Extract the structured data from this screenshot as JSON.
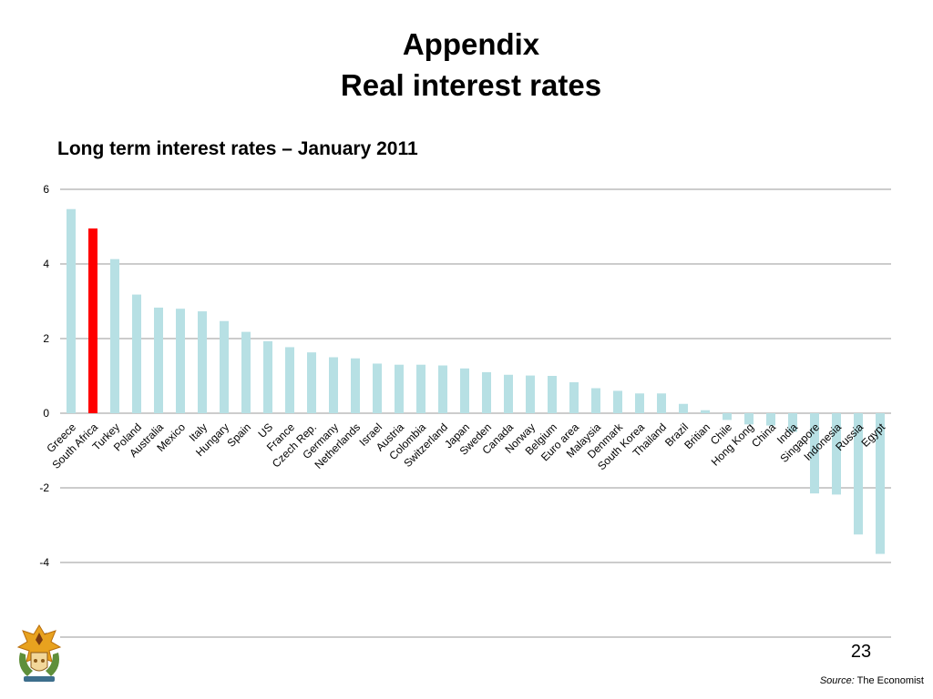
{
  "slide": {
    "title_line1": "Appendix",
    "title_line2": "Real interest rates",
    "subtitle": "Long term interest rates – January 2011",
    "page_number": "23",
    "source_label": "Source:",
    "source_value": "The Economist"
  },
  "colors": {
    "bar": "#b7e0e4",
    "highlight": "#ff0000",
    "grid": "#999999"
  },
  "chart_data": {
    "type": "bar",
    "title": "",
    "xlabel": "",
    "ylabel": "",
    "ylim": [
      -6,
      6
    ],
    "yticks": [
      6,
      4,
      2,
      0,
      -2,
      -4,
      -6
    ],
    "grid": true,
    "legend": "none",
    "highlight_category": "South Africa",
    "categories": [
      "Greece",
      "South Africa",
      "Turkey",
      "Poland",
      "Australia",
      "Mexico",
      "Italy",
      "Hungary",
      "Spain",
      "US",
      "France",
      "Czech Rep.",
      "Germany",
      "Netherlands",
      "Israel",
      "Austria",
      "Colombia",
      "Switzerland",
      "Japan",
      "Sweden",
      "Canada",
      "Norway",
      "Belgium",
      "Euro area",
      "Malaysia",
      "Denmark",
      "South Korea",
      "Thailand",
      "Brazil",
      "Britian",
      "Chile",
      "Hong Kong",
      "China",
      "India",
      "Singapore",
      "Indonesia",
      "Russia",
      "Egypt"
    ],
    "values": [
      5.47,
      4.95,
      4.13,
      3.18,
      2.83,
      2.8,
      2.73,
      2.47,
      2.18,
      1.93,
      1.77,
      1.63,
      1.5,
      1.47,
      1.33,
      1.3,
      1.3,
      1.28,
      1.2,
      1.1,
      1.03,
      1.01,
      1.0,
      0.83,
      0.67,
      0.6,
      0.53,
      0.53,
      0.25,
      0.08,
      -0.18,
      -0.3,
      -0.33,
      -0.5,
      -2.15,
      -2.18,
      -3.25,
      -3.77
    ]
  }
}
